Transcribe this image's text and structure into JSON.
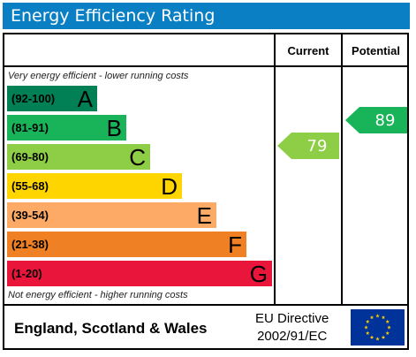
{
  "title": "Energy Efficiency Rating",
  "columns": {
    "current": "Current",
    "potential": "Potential"
  },
  "top_note": "Very energy efficient - lower running costs",
  "bottom_note": "Not energy efficient - higher running costs",
  "bands": [
    {
      "range": "(92-100)",
      "letter": "A",
      "color": "#008054",
      "text_color": "#000000"
    },
    {
      "range": "(81-91)",
      "letter": "B",
      "color": "#19b459",
      "text_color": "#000000"
    },
    {
      "range": "(69-80)",
      "letter": "C",
      "color": "#8dce46",
      "text_color": "#000000"
    },
    {
      "range": "(55-68)",
      "letter": "D",
      "color": "#ffd500",
      "text_color": "#000000"
    },
    {
      "range": "(39-54)",
      "letter": "E",
      "color": "#fcaa65",
      "text_color": "#000000"
    },
    {
      "range": "(21-38)",
      "letter": "F",
      "color": "#ef8023",
      "text_color": "#000000"
    },
    {
      "range": "(1-20)",
      "letter": "G",
      "color": "#e9153b",
      "text_color": "#000000"
    }
  ],
  "current": {
    "value": "79",
    "color": "#8dce46"
  },
  "potential": {
    "value": "89",
    "color": "#19b459"
  },
  "footer": {
    "region": "England, Scotland & Wales",
    "directive_line1": "EU Directive",
    "directive_line2": "2002/91/EC"
  },
  "flag_icon": "eu-flag-icon"
}
